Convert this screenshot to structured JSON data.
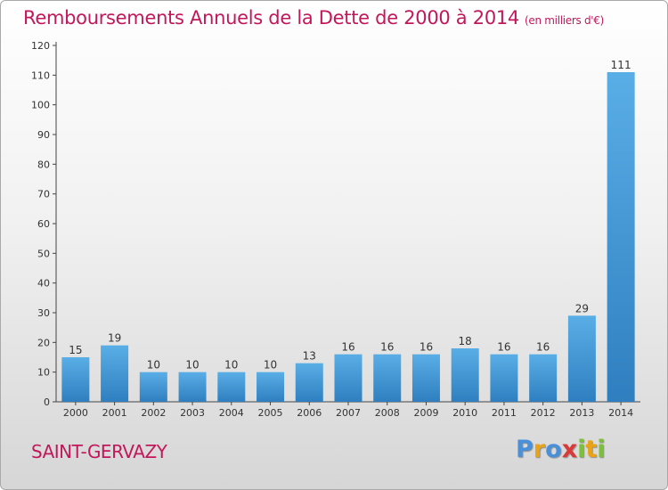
{
  "chart_data": {
    "type": "bar",
    "title": "Remboursements Annuels de la Dette de 2000 à 2014",
    "subtitle": "(en milliers d'€)",
    "categories": [
      "2000",
      "2001",
      "2002",
      "2003",
      "2004",
      "2005",
      "2006",
      "2007",
      "2008",
      "2009",
      "2010",
      "2011",
      "2012",
      "2013",
      "2014"
    ],
    "values": [
      15,
      19,
      10,
      10,
      10,
      10,
      13,
      16,
      16,
      16,
      18,
      16,
      16,
      29,
      111
    ],
    "ylim": [
      0,
      120
    ],
    "yticks": [
      0,
      10,
      20,
      30,
      40,
      50,
      60,
      70,
      80,
      90,
      100,
      110,
      120
    ],
    "grid": false,
    "bar_color_top": "#5aaee6",
    "bar_color_bottom": "#2f7fc0"
  },
  "city": "SAINT-GERVAZY",
  "logo": {
    "letters": [
      "P",
      "r",
      "o",
      "x",
      "i",
      "t",
      "i"
    ],
    "colors": [
      "#4a90d9",
      "#e8a317",
      "#4a90d9",
      "#d83a3a",
      "#7bbf3a",
      "#e8a317",
      "#7bbf3a"
    ]
  },
  "colors": {
    "accent": "#c2185b"
  }
}
